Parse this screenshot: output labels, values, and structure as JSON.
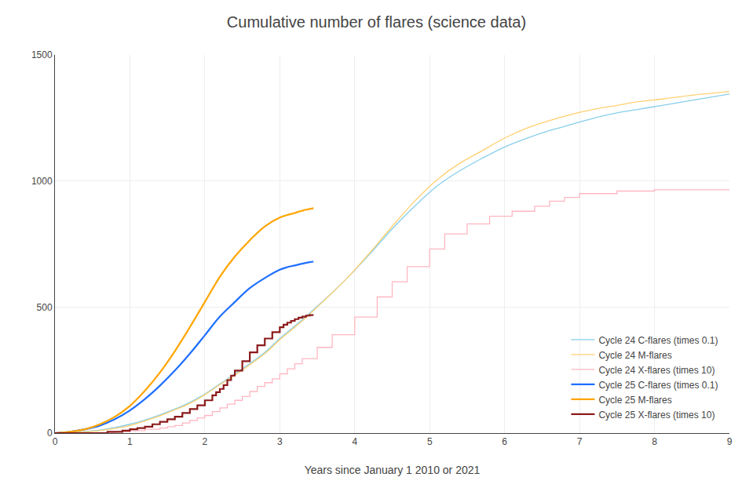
{
  "chart_data": {
    "type": "line",
    "title": "Cumulative number of flares (science data)",
    "xlabel": "Years since January 1 2010 or 2021",
    "xlim": [
      0,
      9
    ],
    "ylim": [
      0,
      1500
    ],
    "xticks": [
      0,
      1,
      2,
      3,
      4,
      5,
      6,
      7,
      8,
      9
    ],
    "yticks": [
      0,
      500,
      1000,
      1500
    ],
    "grid": true,
    "legend": "lower right",
    "series": [
      {
        "name": "Cycle 24 C-flares (times 0.1)",
        "type": "line",
        "color": "#87CEEB",
        "x": [
          0.0,
          0.3,
          0.6,
          0.8,
          1.0,
          1.2,
          1.4,
          1.6,
          1.8,
          2.0,
          2.2,
          2.5,
          2.8,
          3.0,
          3.3,
          3.6,
          3.9,
          4.2,
          4.5,
          4.8,
          5.1,
          5.4,
          5.7,
          6.0,
          6.3,
          6.6,
          6.9,
          7.2,
          7.5,
          7.8,
          8.1,
          8.5,
          9.0
        ],
        "values": [
          0,
          5,
          12,
          22,
          35,
          52,
          72,
          95,
          122,
          155,
          195,
          255,
          320,
          375,
          450,
          530,
          615,
          710,
          810,
          900,
          980,
          1040,
          1090,
          1135,
          1170,
          1200,
          1225,
          1250,
          1270,
          1285,
          1300,
          1320,
          1345
        ]
      },
      {
        "name": "Cycle 24 M-flares",
        "type": "line",
        "color": "#FFD070",
        "x": [
          0.0,
          0.3,
          0.6,
          0.8,
          1.0,
          1.2,
          1.4,
          1.6,
          1.8,
          2.0,
          2.2,
          2.5,
          2.8,
          3.0,
          3.3,
          3.6,
          3.9,
          4.2,
          4.5,
          4.8,
          5.1,
          5.4,
          5.7,
          6.0,
          6.3,
          6.6,
          6.9,
          7.2,
          7.5,
          7.8,
          8.1,
          8.5,
          9.0
        ],
        "values": [
          0,
          3,
          10,
          18,
          30,
          48,
          68,
          92,
          118,
          152,
          192,
          250,
          315,
          370,
          445,
          528,
          615,
          715,
          820,
          920,
          1005,
          1070,
          1120,
          1170,
          1210,
          1240,
          1265,
          1285,
          1300,
          1315,
          1325,
          1340,
          1355
        ]
      },
      {
        "name": "Cycle 24 X-flares (times 10)",
        "type": "step",
        "color": "#FFB6C1",
        "x": [
          0.0,
          0.5,
          0.8,
          1.0,
          1.2,
          1.4,
          1.5,
          1.6,
          1.7,
          1.8,
          1.9,
          2.0,
          2.1,
          2.2,
          2.3,
          2.4,
          2.5,
          2.6,
          2.7,
          2.8,
          2.9,
          3.0,
          3.1,
          3.2,
          3.3,
          3.5,
          3.7,
          4.0,
          4.3,
          4.5,
          4.7,
          5.0,
          5.2,
          5.5,
          5.8,
          6.1,
          6.4,
          6.6,
          6.8,
          7.0,
          7.5,
          8.0,
          9.0
        ],
        "values": [
          0,
          0,
          5,
          10,
          15,
          20,
          25,
          30,
          40,
          50,
          60,
          70,
          85,
          100,
          115,
          130,
          145,
          165,
          185,
          200,
          215,
          235,
          255,
          275,
          295,
          340,
          390,
          460,
          540,
          600,
          660,
          730,
          790,
          830,
          860,
          880,
          900,
          920,
          935,
          950,
          960,
          965,
          965
        ]
      },
      {
        "name": "Cycle 25 C-flares (times 0.1)",
        "type": "line",
        "color": "#1E6FFF",
        "x": [
          0.0,
          0.2,
          0.4,
          0.6,
          0.8,
          1.0,
          1.2,
          1.4,
          1.6,
          1.8,
          2.0,
          2.2,
          2.4,
          2.6,
          2.8,
          3.0,
          3.1,
          3.2,
          3.3,
          3.4,
          3.45
        ],
        "values": [
          0,
          5,
          15,
          30,
          55,
          90,
          135,
          188,
          248,
          315,
          388,
          462,
          520,
          575,
          615,
          648,
          658,
          665,
          672,
          678,
          680
        ]
      },
      {
        "name": "Cycle 25 M-flares",
        "type": "line",
        "color": "#FFA500",
        "x": [
          0.0,
          0.2,
          0.4,
          0.6,
          0.8,
          1.0,
          1.2,
          1.4,
          1.6,
          1.8,
          2.0,
          2.2,
          2.4,
          2.6,
          2.8,
          3.0,
          3.1,
          3.2,
          3.25,
          3.3,
          3.35,
          3.4,
          3.45
        ],
        "values": [
          0,
          5,
          15,
          35,
          65,
          108,
          168,
          240,
          325,
          420,
          520,
          620,
          700,
          765,
          820,
          855,
          865,
          873,
          878,
          882,
          886,
          889,
          892
        ]
      },
      {
        "name": "Cycle 25 X-flares (times 10)",
        "type": "step",
        "color": "#8B1A1A",
        "x": [
          0.0,
          0.5,
          0.7,
          0.9,
          1.0,
          1.1,
          1.2,
          1.3,
          1.4,
          1.5,
          1.6,
          1.7,
          1.8,
          1.9,
          2.0,
          2.1,
          2.15,
          2.2,
          2.25,
          2.3,
          2.35,
          2.4,
          2.5,
          2.6,
          2.7,
          2.8,
          2.9,
          3.0,
          3.05,
          3.1,
          3.15,
          3.2,
          3.25,
          3.3,
          3.35,
          3.4,
          3.45
        ],
        "values": [
          0,
          0,
          5,
          10,
          15,
          20,
          25,
          35,
          45,
          55,
          65,
          80,
          95,
          110,
          130,
          150,
          162,
          175,
          190,
          210,
          228,
          248,
          285,
          320,
          348,
          375,
          400,
          420,
          430,
          438,
          445,
          452,
          458,
          462,
          466,
          468,
          468
        ]
      }
    ]
  }
}
